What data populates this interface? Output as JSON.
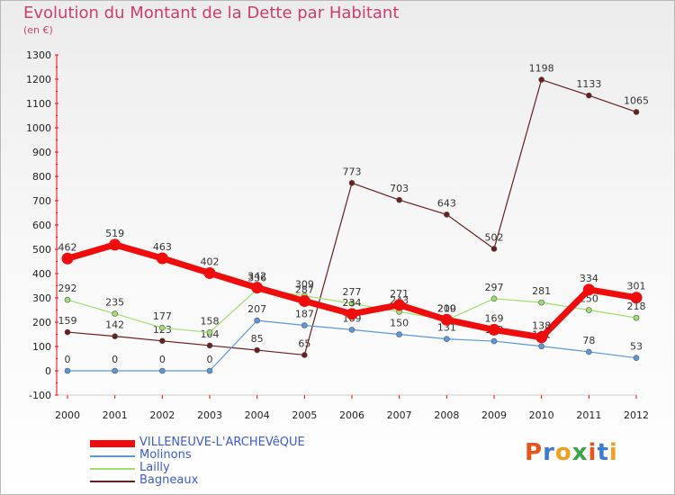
{
  "title": "Evolution du Montant de la Dette par Habitant",
  "unit": "(en €)",
  "brand": {
    "text": "Proxiti",
    "colors": [
      "#e8541c",
      "#3f7ad1",
      "#f0a020",
      "#3aa447",
      "#e8541c",
      "#3f7ad1",
      "#f0a020"
    ]
  },
  "chart_data": {
    "type": "line",
    "x": [
      "2000",
      "2001",
      "2002",
      "2003",
      "2004",
      "2005",
      "2006",
      "2007",
      "2008",
      "2009",
      "2010",
      "2011",
      "2012"
    ],
    "ylim": [
      -100,
      1300
    ],
    "yticks": [
      -100,
      0,
      100,
      200,
      300,
      400,
      500,
      600,
      700,
      800,
      900,
      1000,
      1100,
      1200,
      1300
    ],
    "grid": false,
    "legend": "bottom-left",
    "series": [
      {
        "name": "Bagneaux",
        "color": "#6b1e1e",
        "values": [
          159,
          142,
          123,
          104,
          85,
          65,
          773,
          703,
          643,
          502,
          1198,
          1133,
          1065
        ],
        "thick": false
      },
      {
        "name": "Molinons",
        "color": "#5a98d8",
        "values": [
          0,
          0,
          0,
          0,
          207,
          187,
          169,
          150,
          131,
          122,
          101,
          78,
          53
        ],
        "thick": false
      },
      {
        "name": "Lailly",
        "color": "#9ee06b",
        "values": [
          292,
          235,
          177,
          158,
          336,
          309,
          277,
          243,
          209,
          297,
          281,
          250,
          218
        ],
        "thick": false
      },
      {
        "name": "VILLENEUVE-L'ARCHEVêQUE",
        "color": "#ee0c0c",
        "values": [
          462,
          519,
          463,
          402,
          342,
          287,
          234,
          271,
          210,
          169,
          138,
          334,
          301
        ],
        "thick": true
      }
    ]
  }
}
